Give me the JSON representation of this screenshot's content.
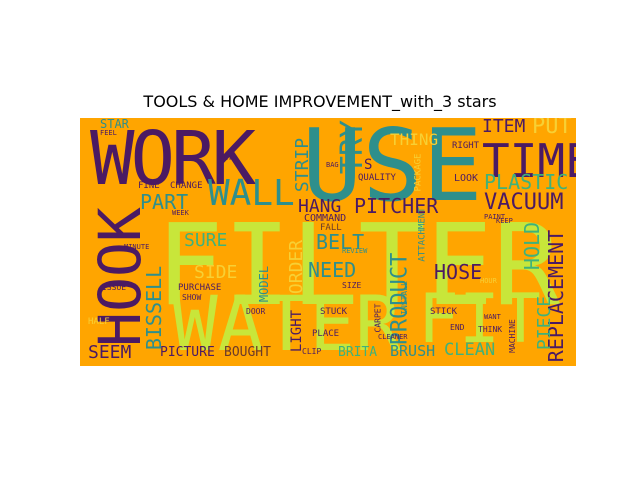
{
  "figure": {
    "title": "TOOLS & HOME IMPROVEMENT_with_3 stars"
  },
  "palette": {
    "background": "#ffa500",
    "purple": "#4b1a63",
    "teal": "#2e8f8c",
    "green": "#3fb27a",
    "yellow": "#c8e63a",
    "gold": "#f7d034",
    "olive": "#8aa63c",
    "brown": "#6b3a2a"
  },
  "words": [
    {
      "text": "USE",
      "color": "#2e8f8c"
    },
    {
      "text": "FILTER",
      "color": "#c8e63a"
    },
    {
      "text": "WORK",
      "color": "#4b1a63"
    },
    {
      "text": "WATER",
      "color": "#c8e63a"
    },
    {
      "text": "HOOK",
      "color": "#4b1a63"
    },
    {
      "text": "FIT",
      "color": "#c8e63a"
    },
    {
      "text": "TIME",
      "color": "#4b1a63"
    },
    {
      "text": "WALL",
      "color": "#2e8f8c"
    },
    {
      "text": "TRY",
      "color": "#2e8f8c"
    },
    {
      "text": "PLASTIC",
      "color": "#3fb27a"
    },
    {
      "text": "VACUUM",
      "color": "#4b1a63"
    },
    {
      "text": "PITCHER",
      "color": "#4b1a63"
    },
    {
      "text": "REPLACEMENT",
      "color": "#4b1a63"
    },
    {
      "text": "PRODUCT",
      "color": "#2e8f8c"
    },
    {
      "text": "BISSELL",
      "color": "#2e8f8c"
    },
    {
      "text": "BELT",
      "color": "#2e8f8c"
    },
    {
      "text": "NEED",
      "color": "#2e8f8c"
    },
    {
      "text": "HOSE",
      "color": "#4b1a63"
    },
    {
      "text": "HOLD",
      "color": "#3fb27a"
    },
    {
      "text": "ITEM",
      "color": "#4b1a63"
    },
    {
      "text": "PUT",
      "color": "#f7d034"
    },
    {
      "text": "PART",
      "color": "#2e8f8c"
    },
    {
      "text": "STRIP",
      "color": "#2e8f8c"
    },
    {
      "text": "HANG",
      "color": "#4b1a63"
    },
    {
      "text": "SURE",
      "color": "#3fb27a"
    },
    {
      "text": "SIDE",
      "color": "#f7d034"
    },
    {
      "text": "ORDER",
      "color": "#f7d034"
    },
    {
      "text": "SEEM",
      "color": "#4b1a63"
    },
    {
      "text": "PICTURE",
      "color": "#4b1a63"
    },
    {
      "text": "BOUGHT",
      "color": "#6b3a2a"
    },
    {
      "text": "LIGHT",
      "color": "#4b1a63"
    },
    {
      "text": "BRITA",
      "color": "#3fb27a"
    },
    {
      "text": "BRUSH",
      "color": "#2e8f8c"
    },
    {
      "text": "CLEAN",
      "color": "#3fb27a"
    },
    {
      "text": "PIECE",
      "color": "#3fb27a"
    },
    {
      "text": "THING",
      "color": "#f7d034"
    },
    {
      "text": "MODEL",
      "color": "#2e8f8c"
    },
    {
      "text": "STAR",
      "color": "#2e8f8c"
    },
    {
      "text": "S",
      "color": "#4b1a63"
    },
    {
      "text": "COMMAND",
      "color": "#4b1a63"
    },
    {
      "text": "FALL",
      "color": "#6b3a2a"
    },
    {
      "text": "QUALITY",
      "color": "#4b1a63"
    },
    {
      "text": "ATTACHMENT",
      "color": "#2e8f8c"
    },
    {
      "text": "INSTALL",
      "color": "#2e8f8c"
    },
    {
      "text": "PACKAGE",
      "color": "#f7d034"
    },
    {
      "text": "LOOK",
      "color": "#4b1a63"
    },
    {
      "text": "RIGHT",
      "color": "#4b1a63"
    },
    {
      "text": "FINE",
      "color": "#4b1a63"
    },
    {
      "text": "CHANGE",
      "color": "#4b1a63"
    },
    {
      "text": "PURCHASE",
      "color": "#4b1a63"
    },
    {
      "text": "SHOW",
      "color": "#4b1a63"
    },
    {
      "text": "ISSUE",
      "color": "#4b1a63"
    },
    {
      "text": "HALF",
      "color": "#f7d034"
    },
    {
      "text": "DOOR",
      "color": "#4b1a63"
    },
    {
      "text": "STUCK",
      "color": "#4b1a63"
    },
    {
      "text": "PLACE",
      "color": "#4b1a63"
    },
    {
      "text": "STICK",
      "color": "#4b1a63"
    },
    {
      "text": "END",
      "color": "#4b1a63"
    },
    {
      "text": "THINK",
      "color": "#4b1a63"
    },
    {
      "text": "MACHINE",
      "color": "#4b1a63"
    },
    {
      "text": "CARPET",
      "color": "#4b1a63"
    },
    {
      "text": "CLEANER",
      "color": "#4b1a63"
    },
    {
      "text": "CLIP",
      "color": "#4b1a63"
    },
    {
      "text": "SIZE",
      "color": "#4b1a63"
    },
    {
      "text": "REVIEW",
      "color": "#2e8f8c"
    },
    {
      "text": "WEEK",
      "color": "#4b1a63"
    },
    {
      "text": "WAY",
      "color": "#4b1a63"
    },
    {
      "text": "BAG",
      "color": "#4b1a63"
    },
    {
      "text": "FEEL",
      "color": "#4b1a63"
    },
    {
      "text": "MINUTE",
      "color": "#4b1a63"
    },
    {
      "text": "HOUR",
      "color": "#f7d034"
    },
    {
      "text": "WANT",
      "color": "#4b1a63"
    },
    {
      "text": "KEEP",
      "color": "#4b1a63"
    },
    {
      "text": "PAINT",
      "color": "#4b1a63"
    }
  ]
}
